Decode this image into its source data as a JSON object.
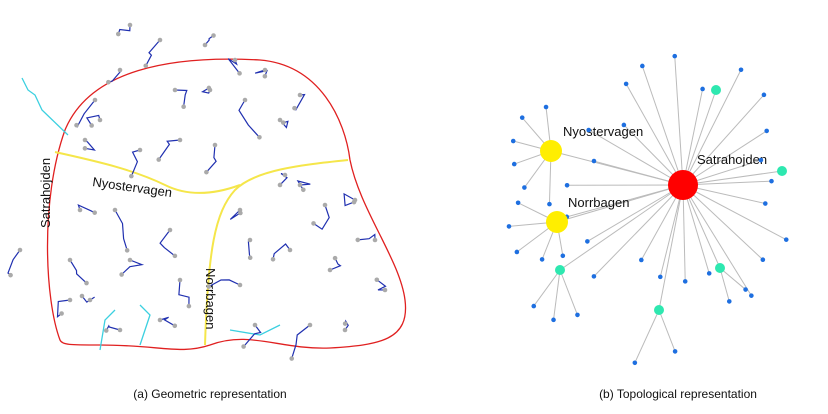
{
  "panels": [
    {
      "streets": [
        "Satrahojden",
        "Nyostervagen",
        "Norrbagen"
      ],
      "caption": "(a) Geometric representation"
    },
    {
      "streets": [
        "Nyostervagen",
        "Satrahojden",
        "Norrbagen"
      ],
      "caption": "(b) Topological representation"
    }
  ]
}
